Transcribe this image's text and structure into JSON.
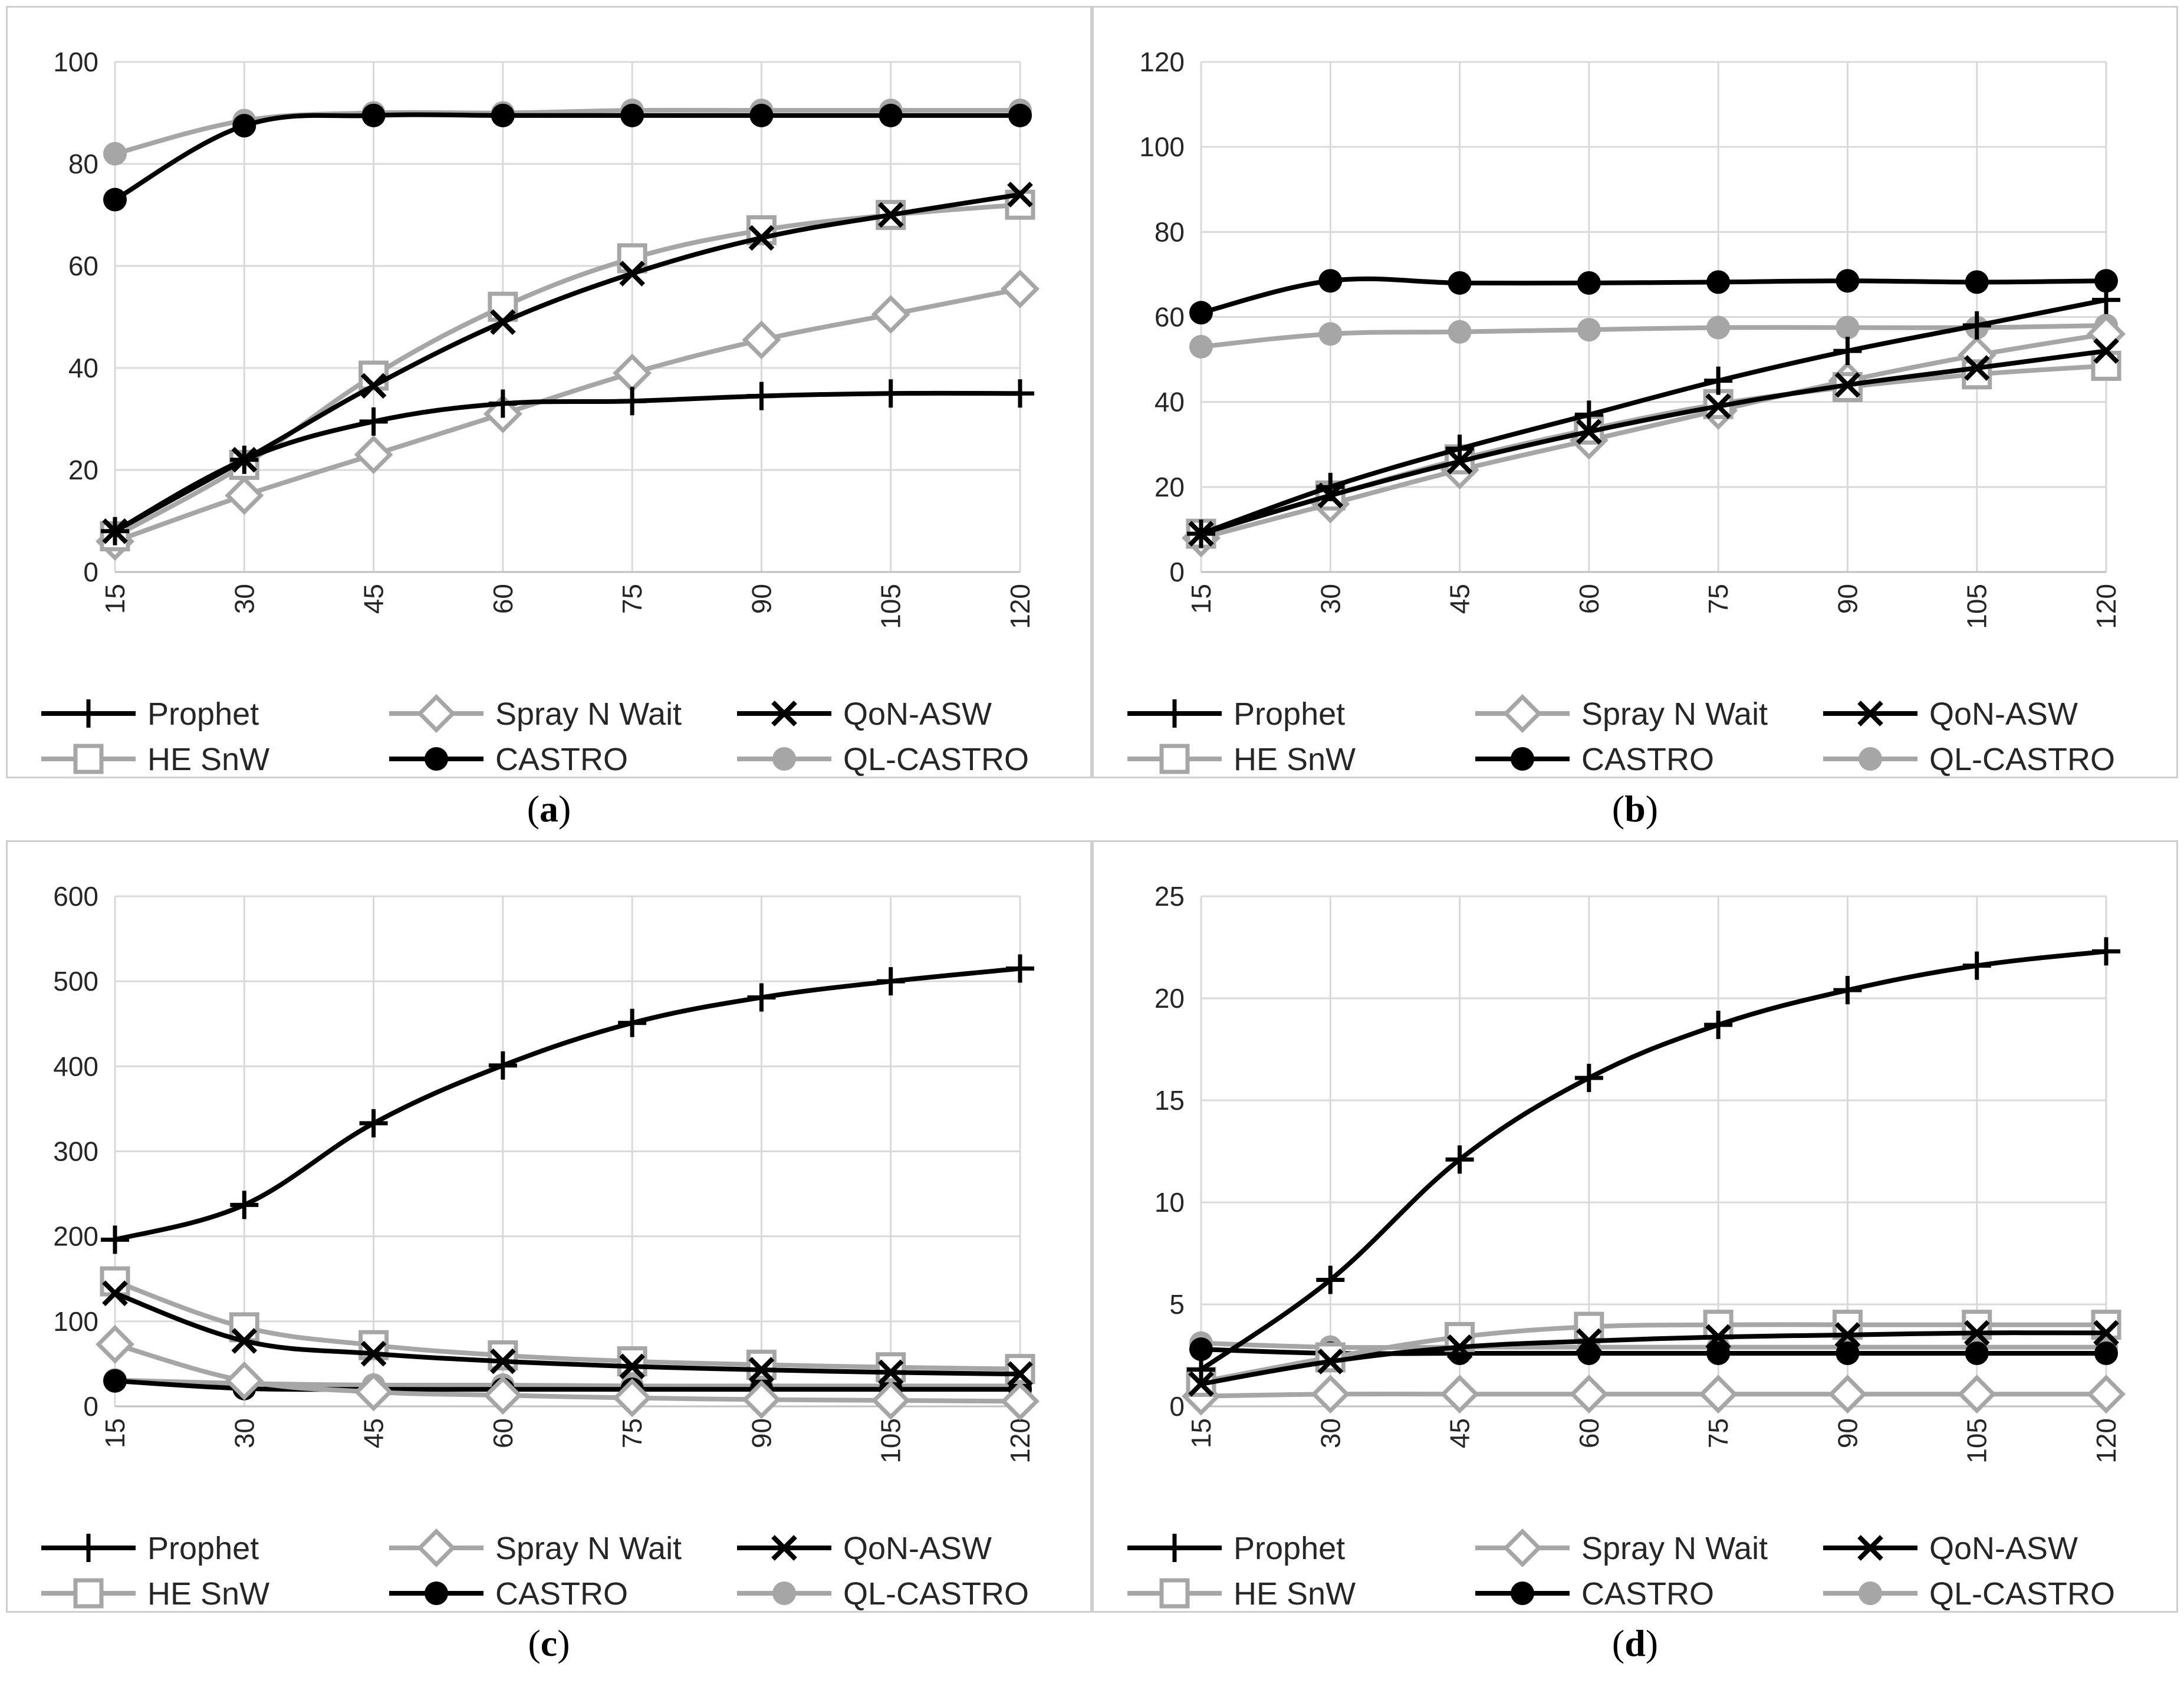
{
  "panels": [
    {
      "id": "a",
      "label": "a"
    },
    {
      "id": "b",
      "label": "b"
    },
    {
      "id": "c",
      "label": "c"
    },
    {
      "id": "d",
      "label": "d"
    }
  ],
  "legend_order": [
    "Prophet",
    "Spray N Wait",
    "QoN-ASW",
    "HE SnW",
    "CASTRO",
    "QL-CASTRO"
  ],
  "series_styles": {
    "Prophet": {
      "color": "#000000",
      "marker": "plus"
    },
    "Spray N Wait": {
      "color": "#a6a6a6",
      "marker": "diamond"
    },
    "QoN-ASW": {
      "color": "#000000",
      "marker": "x"
    },
    "HE SnW": {
      "color": "#a6a6a6",
      "marker": "square"
    },
    "CASTRO": {
      "color": "#000000",
      "marker": "circle"
    },
    "QL-CASTRO": {
      "color": "#a6a6a6",
      "marker": "circle"
    }
  },
  "chart_data": [
    {
      "type": "line",
      "panel": "a",
      "x": [
        15,
        30,
        45,
        60,
        75,
        90,
        105,
        120
      ],
      "ylim": [
        0,
        100
      ],
      "yticks": [
        0,
        20,
        40,
        60,
        80,
        100
      ],
      "grid": true,
      "legend": "bottom",
      "series": [
        {
          "name": "Prophet",
          "values": [
            8,
            22,
            29.5,
            33,
            33.5,
            34.5,
            35,
            35
          ]
        },
        {
          "name": "Spray N Wait",
          "values": [
            6,
            15,
            23,
            31,
            39,
            45.5,
            50.5,
            55.5
          ]
        },
        {
          "name": "QoN-ASW",
          "values": [
            8,
            22,
            36.5,
            49,
            58.5,
            65.5,
            70,
            74
          ]
        },
        {
          "name": "HE SnW",
          "values": [
            7,
            21,
            38.5,
            52,
            61.5,
            67,
            70,
            72
          ]
        },
        {
          "name": "CASTRO",
          "values": [
            73,
            87.5,
            89.5,
            89.5,
            89.5,
            89.5,
            89.5,
            89.5
          ]
        },
        {
          "name": "QL-CASTRO",
          "values": [
            82,
            88.5,
            90,
            90,
            90.5,
            90.5,
            90.5,
            90.5
          ]
        }
      ]
    },
    {
      "type": "line",
      "panel": "b",
      "x": [
        15,
        30,
        45,
        60,
        75,
        90,
        105,
        120
      ],
      "ylim": [
        0,
        120
      ],
      "yticks": [
        0,
        20,
        40,
        60,
        80,
        100,
        120
      ],
      "grid": true,
      "legend": "bottom",
      "series": [
        {
          "name": "Prophet",
          "values": [
            9,
            20,
            29,
            37,
            45,
            52,
            58,
            64
          ]
        },
        {
          "name": "Spray N Wait",
          "values": [
            8,
            16,
            24,
            31,
            38,
            45,
            51,
            56
          ]
        },
        {
          "name": "QoN-ASW",
          "values": [
            9,
            18,
            26,
            33,
            39,
            44,
            48,
            52
          ]
        },
        {
          "name": "HE SnW",
          "values": [
            9,
            18,
            26.5,
            33.5,
            39.5,
            43.5,
            46.5,
            48.5
          ]
        },
        {
          "name": "CASTRO",
          "values": [
            61,
            68.5,
            68,
            68,
            68.2,
            68.5,
            68.2,
            68.5
          ]
        },
        {
          "name": "QL-CASTRO",
          "values": [
            53,
            56,
            56.5,
            57,
            57.5,
            57.5,
            57.5,
            58
          ]
        }
      ]
    },
    {
      "type": "line",
      "panel": "c",
      "x": [
        15,
        30,
        45,
        60,
        75,
        90,
        105,
        120
      ],
      "ylim": [
        0,
        600
      ],
      "yticks": [
        0,
        100,
        200,
        300,
        400,
        500,
        600
      ],
      "grid": true,
      "legend": "bottom",
      "series": [
        {
          "name": "Prophet",
          "values": [
            196,
            237,
            333,
            401,
            451,
            481,
            500,
            515
          ]
        },
        {
          "name": "Spray N Wait",
          "values": [
            73,
            30,
            17,
            13,
            10,
            8,
            7,
            6
          ]
        },
        {
          "name": "QoN-ASW",
          "values": [
            133,
            77,
            62,
            53,
            47,
            43,
            40,
            38
          ]
        },
        {
          "name": "HE SnW",
          "values": [
            147,
            93,
            72,
            60,
            53,
            49,
            46,
            44
          ]
        },
        {
          "name": "CASTRO",
          "values": [
            30,
            21,
            20,
            20,
            20,
            20,
            20,
            20
          ]
        },
        {
          "name": "QL-CASTRO",
          "values": [
            31,
            27,
            25,
            25,
            24,
            24,
            24,
            24
          ]
        }
      ]
    },
    {
      "type": "line",
      "panel": "d",
      "x": [
        15,
        30,
        45,
        60,
        75,
        90,
        105,
        120
      ],
      "ylim": [
        0,
        25
      ],
      "yticks": [
        0,
        5,
        10,
        15,
        20,
        25
      ],
      "grid": true,
      "legend": "bottom",
      "series": [
        {
          "name": "Prophet",
          "values": [
            1.8,
            6.2,
            12.1,
            16.1,
            18.7,
            20.4,
            21.6,
            22.3
          ]
        },
        {
          "name": "Spray N Wait",
          "values": [
            0.5,
            0.6,
            0.6,
            0.6,
            0.6,
            0.6,
            0.6,
            0.6
          ]
        },
        {
          "name": "QoN-ASW",
          "values": [
            1.1,
            2.2,
            2.9,
            3.2,
            3.4,
            3.5,
            3.6,
            3.6
          ]
        },
        {
          "name": "HE SnW",
          "values": [
            1.2,
            2.4,
            3.4,
            3.9,
            4.0,
            4.0,
            4.0,
            4.0
          ]
        },
        {
          "name": "CASTRO",
          "values": [
            2.8,
            2.6,
            2.6,
            2.6,
            2.6,
            2.6,
            2.6,
            2.6
          ]
        },
        {
          "name": "QL-CASTRO",
          "values": [
            3.1,
            2.9,
            2.9,
            2.9,
            2.9,
            2.9,
            2.9,
            2.9
          ]
        }
      ]
    }
  ]
}
